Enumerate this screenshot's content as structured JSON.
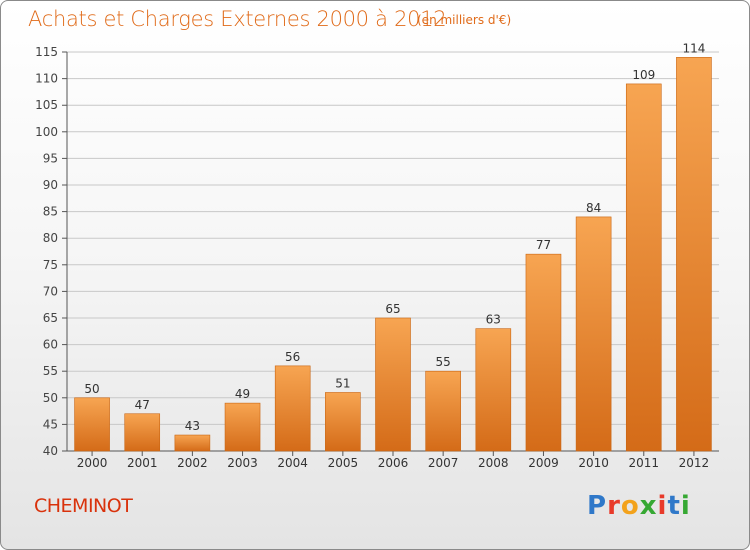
{
  "header": {
    "title": "Achats et Charges Externes 2000 à 2012",
    "subtitle": "(en milliers d'€)"
  },
  "footer": {
    "commune": "CHEMINOT",
    "logo": "Proxiti"
  },
  "colors": {
    "bar_light": "#f7a552",
    "bar_dark": "#d46b18",
    "title": "#e06b1a",
    "commune": "#d9320c",
    "grid": "#c8c8c8"
  },
  "chart_data": {
    "type": "bar",
    "title": "Achats et Charges Externes 2000 à 2012",
    "subtitle": "(en milliers d'€)",
    "categories": [
      "2000",
      "2001",
      "2002",
      "2003",
      "2004",
      "2005",
      "2006",
      "2007",
      "2008",
      "2009",
      "2010",
      "2011",
      "2012"
    ],
    "values": [
      50,
      47,
      43,
      49,
      56,
      51,
      65,
      55,
      63,
      77,
      84,
      109,
      114
    ],
    "ylim": [
      40,
      115
    ],
    "yticks": [
      40,
      45,
      50,
      55,
      60,
      65,
      70,
      75,
      80,
      85,
      90,
      95,
      100,
      105,
      110,
      115
    ],
    "grid": true,
    "data_labels": true,
    "xlabel": "",
    "ylabel": ""
  }
}
